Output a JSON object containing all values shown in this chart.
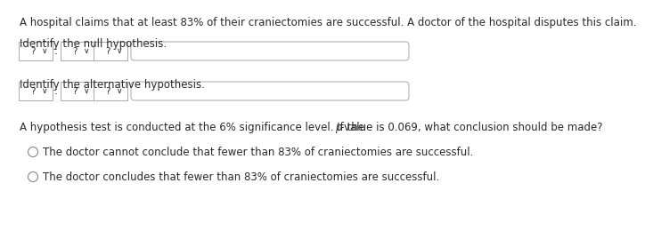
{
  "background_color": "#ffffff",
  "paragraph1": "A hospital claims that at least 83% of their craniectomies are successful. A doctor of the hospital disputes this claim.",
  "null_label": "Identify the null hypothesis.",
  "alt_label": "Identify the alternative hypothesis.",
  "hypothesis_question": "A hypothesis test is conducted at the 6% significance level. If the p-value is 0.069, what conclusion should be made?",
  "option1": "The doctor cannot conclude that fewer than 83% of craniectomies are successful.",
  "option2": "The doctor concludes that fewer than 83% of craniectomies are successful.",
  "font_size_main": 8.5,
  "font_size_dropdown": 7.5,
  "text_color": "#2a2a2a",
  "box_edge_color": "#aaaaaa",
  "radio_edge_color": "#888888",
  "p_value_italic": "p"
}
